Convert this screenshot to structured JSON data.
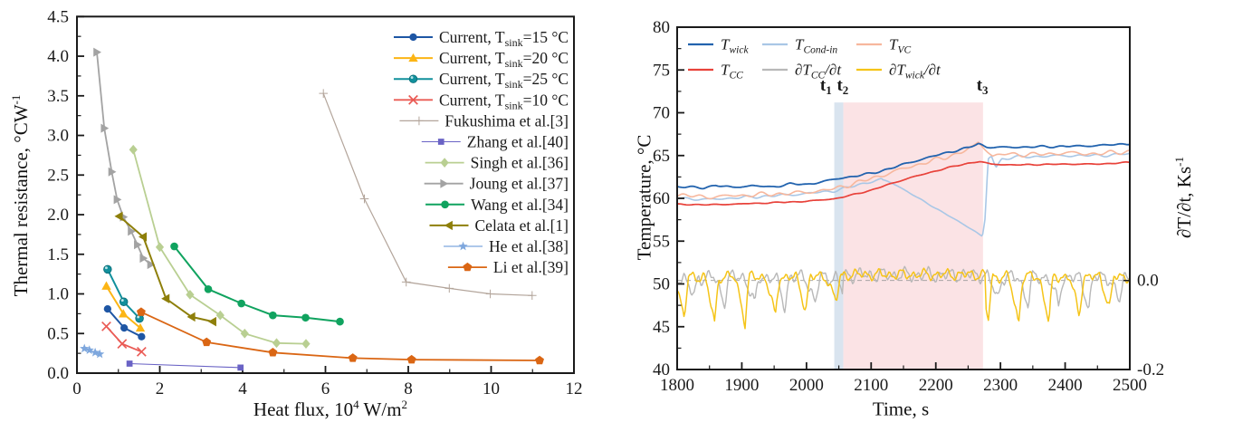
{
  "figure": {
    "description": "Two-panel scientific figure",
    "panels": [
      "thermal-resistance-vs-heat-flux",
      "temperature-vs-time"
    ]
  },
  "chart_data": [
    {
      "type": "scatter",
      "title": "",
      "xlabel": "Heat flux, 10^4 W/m^2",
      "ylabel": "Thermal resistance, °CW^-1",
      "xlabel_parts": [
        {
          "t": "Heat flux, 10"
        },
        {
          "t": "4"
        },
        {
          "t": " W/m"
        },
        {
          "t": "2"
        }
      ],
      "ylabel_parts": [
        {
          "t": "Thermal resistance, °CW"
        },
        {
          "t": "-1"
        }
      ],
      "xlim": [
        0,
        12
      ],
      "ylim": [
        0,
        4.5
      ],
      "x_major": 2,
      "x_minor": 1,
      "y_major": 0.5,
      "y_minor": 0.25,
      "xticks": [
        0,
        2,
        4,
        6,
        8,
        10,
        12
      ],
      "yticks": [
        0.0,
        0.5,
        1.0,
        1.5,
        2.0,
        2.5,
        3.0,
        3.5,
        4.0,
        4.5
      ],
      "grid": false,
      "legend_position": "top-right",
      "series": [
        {
          "label": "Current, T_sink=15 °C",
          "pre": "Current, T",
          "sub": "sink",
          "post": "=15 °C",
          "color": "#1e56a4",
          "marker": "circle",
          "lw": 2.0,
          "ms": 4.6,
          "points": [
            [
              0.74,
              0.81
            ],
            [
              1.14,
              0.57
            ],
            [
              1.56,
              0.46
            ]
          ]
        },
        {
          "label": "Current, T_sink=20 °C",
          "pre": "Current, T",
          "sub": "sink",
          "post": "=20 °C",
          "color": "#fcb515",
          "marker": "triangle-up",
          "lw": 2.0,
          "ms": 5.2,
          "points": [
            [
              0.71,
              1.1
            ],
            [
              1.12,
              0.75
            ],
            [
              1.53,
              0.57
            ]
          ]
        },
        {
          "label": "Current, T_sink=25 °C",
          "pre": "Current, T",
          "sub": "sink",
          "post": "=25 °C",
          "color": "#11909c",
          "marker": "circle-hl",
          "lw": 2.0,
          "ms": 4.8,
          "points": [
            [
              0.74,
              1.31
            ],
            [
              1.13,
              0.9
            ],
            [
              1.51,
              0.69
            ]
          ]
        },
        {
          "label": "Current, T_sink=10 °C",
          "pre": "Current, T",
          "sub": "sink",
          "post": "=10 °C",
          "color": "#ea5b55",
          "marker": "x",
          "lw": 1.8,
          "ms": 4.8,
          "points": [
            [
              0.71,
              0.59
            ],
            [
              1.09,
              0.37
            ],
            [
              1.56,
              0.27
            ]
          ]
        },
        {
          "label": "Fukushima et al.[3]",
          "pre": "Fukushima et al.[3]",
          "sub": "",
          "post": "",
          "color": "#b3a59b",
          "marker": "plus",
          "lw": 1.2,
          "ms": 4.8,
          "points": [
            [
              5.95,
              3.53
            ],
            [
              6.94,
              2.2
            ],
            [
              7.95,
              1.15
            ],
            [
              8.99,
              1.07
            ],
            [
              9.98,
              1.0
            ],
            [
              10.99,
              0.98
            ]
          ]
        },
        {
          "label": "Zhang et al.[40]",
          "pre": "Zhang et al.[40]",
          "sub": "",
          "post": "",
          "color": "#6a63c5",
          "marker": "square",
          "lw": 1.1,
          "ms": 4.2,
          "points": [
            [
              1.27,
              0.12
            ],
            [
              3.95,
              0.07
            ]
          ]
        },
        {
          "label": "Singh et al.[36]",
          "pre": "Singh et al.[36]",
          "sub": "",
          "post": "",
          "color": "#b9cf92",
          "marker": "diamond",
          "lw": 1.8,
          "ms": 5.4,
          "points": [
            [
              1.36,
              2.82
            ],
            [
              2.0,
              1.59
            ],
            [
              2.73,
              0.99
            ],
            [
              3.46,
              0.73
            ],
            [
              4.05,
              0.5
            ],
            [
              4.82,
              0.38
            ],
            [
              5.53,
              0.37
            ]
          ]
        },
        {
          "label": "Joung et al.[37]",
          "pre": "Joung et al.[37]",
          "sub": "",
          "post": "",
          "color": "#a3a3a3",
          "marker": "triangle-right",
          "lw": 1.8,
          "ms": 5.0,
          "points": [
            [
              0.48,
              4.05
            ],
            [
              0.66,
              3.09
            ],
            [
              0.84,
              2.54
            ],
            [
              0.97,
              2.19
            ],
            [
              1.12,
              1.97
            ],
            [
              1.31,
              1.79
            ],
            [
              1.46,
              1.62
            ],
            [
              1.6,
              1.45
            ],
            [
              1.78,
              1.37
            ]
          ]
        },
        {
          "label": "Wang et al.[34]",
          "pre": "Wang et al.[34]",
          "sub": "",
          "post": "",
          "color": "#10a35f",
          "marker": "circle",
          "lw": 2.0,
          "ms": 4.8,
          "points": [
            [
              2.35,
              1.6
            ],
            [
              3.17,
              1.06
            ],
            [
              3.97,
              0.88
            ],
            [
              4.73,
              0.73
            ],
            [
              5.52,
              0.7
            ],
            [
              6.35,
              0.65
            ]
          ]
        },
        {
          "label": "Celata et al.[1]",
          "pre": "Celata et al.[1]",
          "sub": "",
          "post": "",
          "color": "#8e7f0a",
          "marker": "triangle-left",
          "lw": 2.0,
          "ms": 5.2,
          "points": [
            [
              1.02,
              1.98
            ],
            [
              1.6,
              1.72
            ],
            [
              2.15,
              0.94
            ],
            [
              2.77,
              0.71
            ],
            [
              3.28,
              0.65
            ]
          ]
        },
        {
          "label": "He et al.[38]",
          "pre": "He et al.[38]",
          "sub": "",
          "post": "",
          "color": "#7ea7dd",
          "marker": "star",
          "lw": 1.3,
          "ms": 5.4,
          "points": [
            [
              0.18,
              0.31
            ],
            [
              0.3,
              0.29
            ],
            [
              0.44,
              0.26
            ],
            [
              0.55,
              0.24
            ]
          ]
        },
        {
          "label": "Li et al.[39]",
          "pre": "Li et al.[39]",
          "sub": "",
          "post": "",
          "color": "#da6614",
          "marker": "pentagon",
          "lw": 1.8,
          "ms": 5.2,
          "points": [
            [
              1.55,
              0.77
            ],
            [
              3.13,
              0.39
            ],
            [
              4.73,
              0.26
            ],
            [
              6.66,
              0.19
            ],
            [
              8.08,
              0.17
            ],
            [
              11.17,
              0.16
            ]
          ]
        }
      ]
    },
    {
      "type": "line",
      "title": "",
      "xlabel": "Time, s",
      "ylabel": "Temperature, °C",
      "ylabel_right": "∂T/∂t, Ks^-1",
      "ylabel_right_parts": [
        {
          "t": "∂T/∂t, Ks"
        },
        {
          "t": "-1"
        }
      ],
      "xlim": [
        1800,
        2500
      ],
      "ylim": [
        40,
        80
      ],
      "x_major": 100,
      "x_minor": 50,
      "y_major": 5,
      "y_minor": 2.5,
      "xticks": [
        1800,
        1900,
        2000,
        2100,
        2200,
        2300,
        2400,
        2500
      ],
      "yticks": [
        40,
        45,
        50,
        55,
        60,
        65,
        70,
        75,
        80
      ],
      "right_axis": {
        "zero_T": 50.4,
        "T_per_unit": 53.2,
        "tick_labels": [
          {
            "text": "0.0",
            "d": 0.0
          },
          {
            "text": "-0.2",
            "d": -0.2
          }
        ]
      },
      "zero_line_d": 0.0,
      "grid": false,
      "legend_position": "top-left",
      "bands": [
        {
          "name": "t1-t2-band",
          "x1": 2043,
          "x2": 2057,
          "color": "#d9e4ef",
          "top_T": 71.2
        },
        {
          "name": "t2-t3-band",
          "x1": 2057,
          "x2": 2273,
          "color": "#fbe3e5",
          "top_T": 71.2
        }
      ],
      "annotations": [
        {
          "pre": "t",
          "sub": "1",
          "time": 2030,
          "y_T": 72.6
        },
        {
          "pre": "t",
          "sub": "2",
          "time": 2056,
          "y_T": 72.6
        },
        {
          "pre": "t",
          "sub": "3",
          "time": 2272,
          "y_T": 72.6
        }
      ],
      "series": [
        {
          "label": "∂T_CC/∂t",
          "pre": "∂T",
          "sub": "CC",
          "post": "/∂t",
          "color": "#b8b8b8",
          "kind": "derivative",
          "lw": 1.4,
          "params": {
            "baseline": 0.007,
            "band_boost": 0.005,
            "noise": 0.02,
            "dip_period": 47,
            "dip_phase": 1833,
            "dip_depth": 0.06,
            "suppress": [
              2056,
              2276
            ]
          }
        },
        {
          "label": "∂T_wick/∂t",
          "pre": "∂T",
          "sub": "wick",
          "post": "/∂t",
          "color": "#f5c418",
          "kind": "derivative",
          "lw": 1.5,
          "params": {
            "baseline": 0.008,
            "band_boost": 0.005,
            "noise": 0.015,
            "dip_period": 47,
            "dip_phase": 1818,
            "dip_depth": 0.095,
            "suppress": [
              2056,
              2276
            ]
          }
        },
        {
          "label": "T_Cond-in",
          "pre": "T",
          "sub": "Cond-in",
          "post": "",
          "color": "#a9c7e6",
          "kind": "temperature",
          "lw": 1.6,
          "ripple": 0.2,
          "ripple_damp": {
            "range": [
              2118,
              2284
            ],
            "factor": 0.3
          },
          "points": [
            [
              1800,
              60.05
            ],
            [
              1845,
              59.85
            ],
            [
              1900,
              60.1
            ],
            [
              1950,
              60.3
            ],
            [
              2000,
              60.55
            ],
            [
              2043,
              60.9
            ],
            [
              2057,
              61.1
            ],
            [
              2080,
              61.6
            ],
            [
              2100,
              61.95
            ],
            [
              2115,
              62.2
            ],
            [
              2125,
              62.0
            ],
            [
              2140,
              61.5
            ],
            [
              2160,
              60.6
            ],
            [
              2185,
              59.5
            ],
            [
              2210,
              58.4
            ],
            [
              2235,
              57.3
            ],
            [
              2260,
              56.2
            ],
            [
              2272,
              55.5
            ],
            [
              2276,
              57.5
            ],
            [
              2281,
              64.6
            ],
            [
              2286,
              65.0
            ],
            [
              2293,
              63.6
            ],
            [
              2302,
              64.6
            ],
            [
              2320,
              64.8
            ],
            [
              2360,
              64.9
            ],
            [
              2400,
              65.0
            ],
            [
              2450,
              65.0
            ],
            [
              2500,
              65.2
            ]
          ]
        },
        {
          "label": "T_VC",
          "pre": "T",
          "sub": "VC",
          "post": "",
          "color": "#f7b79d",
          "kind": "temperature",
          "lw": 1.6,
          "ripple": 0.3,
          "points": [
            [
              1800,
              60.4
            ],
            [
              1845,
              60.15
            ],
            [
              1900,
              60.35
            ],
            [
              1950,
              60.5
            ],
            [
              2000,
              60.7
            ],
            [
              2043,
              61.1
            ],
            [
              2057,
              61.4
            ],
            [
              2100,
              62.3
            ],
            [
              2130,
              63.0
            ],
            [
              2160,
              63.7
            ],
            [
              2190,
              64.3
            ],
            [
              2215,
              64.8
            ],
            [
              2240,
              65.4
            ],
            [
              2258,
              66.0
            ],
            [
              2266,
              66.6
            ],
            [
              2274,
              66.0
            ],
            [
              2288,
              64.9
            ],
            [
              2310,
              65.2
            ],
            [
              2350,
              65.1
            ],
            [
              2400,
              65.3
            ],
            [
              2450,
              65.2
            ],
            [
              2500,
              65.5
            ]
          ]
        },
        {
          "label": "T_CC",
          "pre": "T",
          "sub": "CC",
          "post": "",
          "color": "#e8423a",
          "kind": "temperature",
          "lw": 1.7,
          "ripple": 0.07,
          "points": [
            [
              1800,
              59.3
            ],
            [
              1850,
              59.25
            ],
            [
              1900,
              59.35
            ],
            [
              1950,
              59.5
            ],
            [
              2000,
              59.65
            ],
            [
              2043,
              59.95
            ],
            [
              2057,
              60.15
            ],
            [
              2100,
              60.95
            ],
            [
              2130,
              61.7
            ],
            [
              2160,
              62.4
            ],
            [
              2190,
              63.0
            ],
            [
              2220,
              63.6
            ],
            [
              2250,
              64.1
            ],
            [
              2268,
              64.3
            ],
            [
              2285,
              64.0
            ],
            [
              2320,
              63.9
            ],
            [
              2360,
              63.95
            ],
            [
              2400,
              64.0
            ],
            [
              2450,
              64.0
            ],
            [
              2500,
              64.2
            ]
          ]
        },
        {
          "label": "T_wick",
          "pre": "T",
          "sub": "wick",
          "post": "",
          "color": "#2263ae",
          "kind": "temperature",
          "lw": 1.8,
          "ripple": 0.14,
          "points": [
            [
              1800,
              61.4
            ],
            [
              1840,
              61.2
            ],
            [
              1860,
              61.55
            ],
            [
              1885,
              61.25
            ],
            [
              1915,
              61.5
            ],
            [
              1945,
              61.3
            ],
            [
              1975,
              61.7
            ],
            [
              2000,
              61.6
            ],
            [
              2020,
              61.9
            ],
            [
              2043,
              62.2
            ],
            [
              2057,
              62.4
            ],
            [
              2100,
              62.9
            ],
            [
              2130,
              63.5
            ],
            [
              2160,
              64.2
            ],
            [
              2190,
              64.8
            ],
            [
              2220,
              65.4
            ],
            [
              2250,
              65.9
            ],
            [
              2266,
              66.4
            ],
            [
              2278,
              66.0
            ],
            [
              2300,
              65.95
            ],
            [
              2340,
              66.0
            ],
            [
              2380,
              66.05
            ],
            [
              2420,
              66.1
            ],
            [
              2460,
              66.2
            ],
            [
              2500,
              66.4
            ]
          ]
        }
      ],
      "legend_order": [
        "T_wick",
        "T_Cond-in",
        "T_VC",
        "T_CC",
        "∂T_CC/∂t",
        "∂T_wick/∂t"
      ]
    }
  ]
}
